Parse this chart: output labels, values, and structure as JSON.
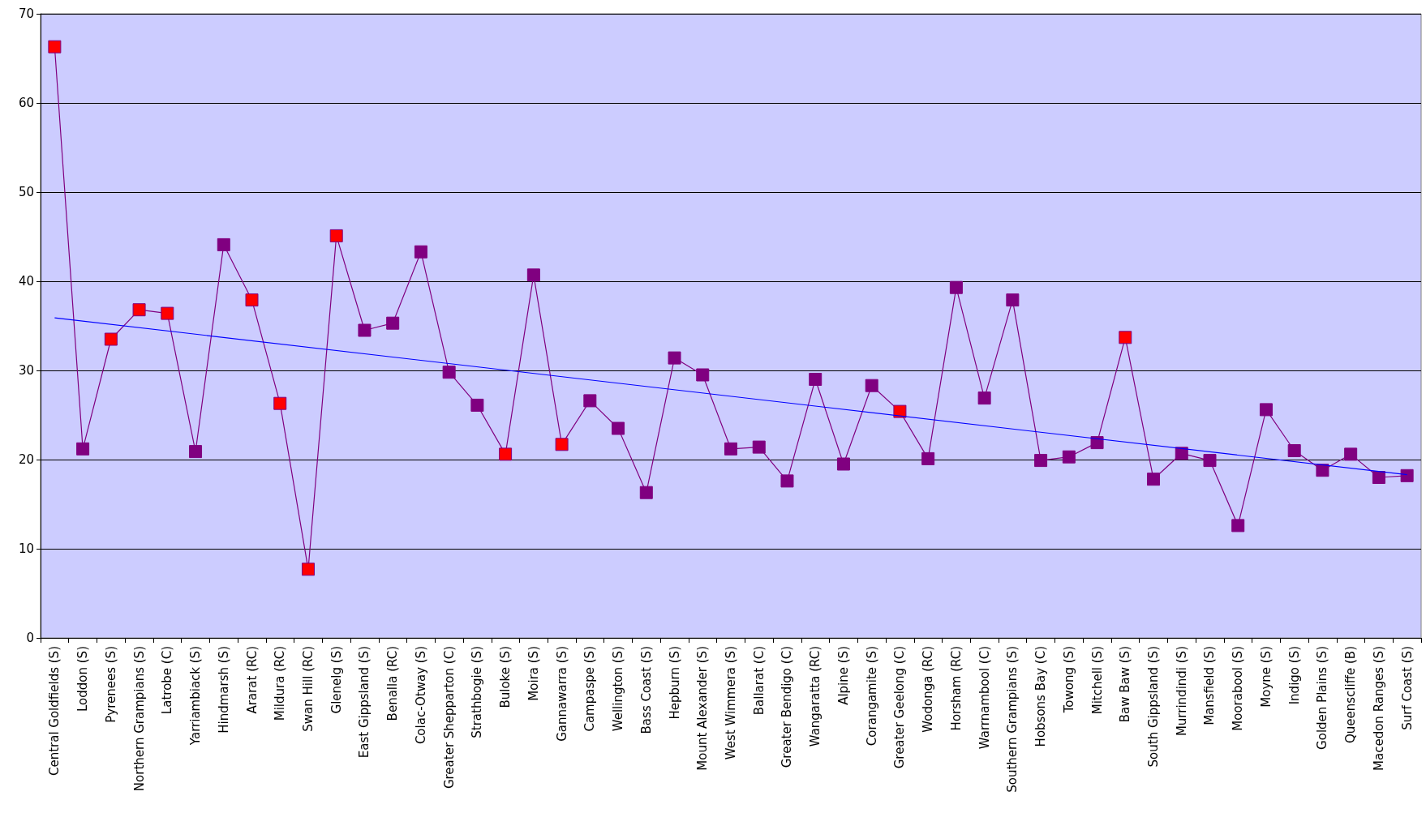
{
  "chart_data": {
    "type": "line",
    "categories": [
      "Central Goldfields (S)",
      "Loddon (S)",
      "Pyrenees (S)",
      "Northern Grampians (S)",
      "Latrobe (C)",
      "Yarriambiack (S)",
      "Hindmarsh (S)",
      "Ararat (RC)",
      "Mildura (RC)",
      "Swan Hill (RC)",
      "Glenelg (S)",
      "East Gippsland (S)",
      "Benalla (RC)",
      "Colac-Otway (S)",
      "Greater Shepparton (C)",
      "Strathbogie (S)",
      "Buloke (S)",
      "Moira (S)",
      "Gannawarra (S)",
      "Campaspe (S)",
      "Wellington (S)",
      "Bass Coast (S)",
      "Hepburn (S)",
      "Mount Alexander (S)",
      "West Wimmera (S)",
      "Ballarat (C)",
      "Greater Bendigo (C)",
      "Wangaratta (RC)",
      "Alpine (S)",
      "Corangamite (S)",
      "Greater Geelong (C)",
      "Wodonga (RC)",
      "Horsham (RC)",
      "Warrnambool (C)",
      "Southern Grampians (S)",
      "Hobsons Bay (C)",
      "Towong (S)",
      "Mitchell (S)",
      "Baw Baw (S)",
      "South Gippsland (S)",
      "Murrindindi (S)",
      "Mansfield (S)",
      "Moorabool (S)",
      "Moyne (S)",
      "Indigo (S)",
      "Golden Plains (S)",
      "Queenscliffe (B)",
      "Macedon Ranges (S)",
      "Surf Coast (S)"
    ],
    "series": [
      {
        "color": "#800080",
        "marker": "square",
        "values": [
          66.3,
          21.2,
          33.5,
          36.8,
          36.4,
          20.9,
          44.1,
          37.9,
          26.3,
          7.7,
          45.1,
          34.5,
          35.3,
          43.3,
          29.8,
          26.1,
          20.6,
          40.7,
          21.7,
          26.6,
          23.5,
          16.3,
          31.4,
          29.5,
          21.2,
          21.4,
          17.6,
          29.0,
          19.5,
          28.3,
          25.4,
          20.1,
          39.3,
          26.9,
          37.9,
          19.9,
          20.3,
          21.9,
          33.7,
          17.8,
          20.7,
          19.9,
          12.6,
          25.6,
          21.0,
          18.8,
          20.6,
          18.0,
          18.2
        ],
        "colors": [
          "#ff0000",
          "#800080",
          "#ff0000",
          "#ff0000",
          "#ff0000",
          "#800080",
          "#800080",
          "#ff0000",
          "#ff0000",
          "#ff0000",
          "#ff0000",
          "#800080",
          "#800080",
          "#800080",
          "#800080",
          "#800080",
          "#ff0000",
          "#800080",
          "#ff0000",
          "#800080",
          "#800080",
          "#800080",
          "#800080",
          "#800080",
          "#800080",
          "#800080",
          "#800080",
          "#800080",
          "#800080",
          "#800080",
          "#ff0000",
          "#800080",
          "#800080",
          "#800080",
          "#800080",
          "#800080",
          "#800080",
          "#800080",
          "#ff0000",
          "#800080",
          "#800080",
          "#800080",
          "#800080",
          "#800080",
          "#800080",
          "#800080",
          "#800080",
          "#800080",
          "#800080"
        ]
      },
      {
        "color": "#0000ff",
        "marker": "none",
        "x": [
          "Central Goldfields (S)",
          "Surf Coast (S)"
        ],
        "values": [
          35.9,
          18.3
        ]
      }
    ],
    "ylim": [
      0,
      70
    ],
    "yticks": [
      0,
      10,
      20,
      30,
      40,
      50,
      60,
      70
    ],
    "grid": "y"
  }
}
